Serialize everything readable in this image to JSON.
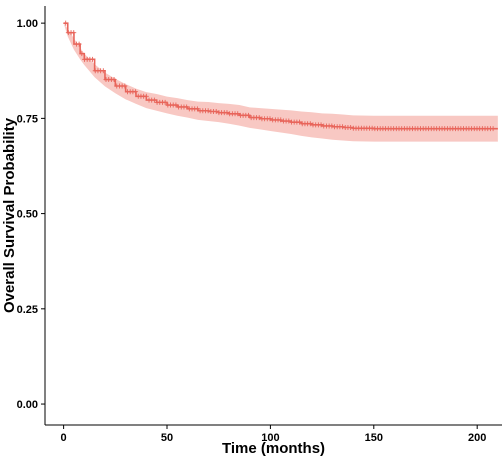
{
  "chart_data": {
    "type": "line",
    "title": "",
    "xlabel": "Time (months)",
    "ylabel": "Overall Survival Probability",
    "xlim": [
      -9,
      212
    ],
    "ylim": [
      -0.055,
      1.045
    ],
    "x_ticks": [
      0,
      50,
      100,
      150,
      200
    ],
    "x_tick_labels": [
      "0",
      "50",
      "100",
      "150",
      "200"
    ],
    "y_ticks": [
      0.0,
      0.25,
      0.5,
      0.75,
      1.0
    ],
    "y_tick_labels": [
      "0.00",
      "0.25",
      "0.50",
      "0.75",
      "1.00"
    ],
    "grid": false,
    "legend": "none",
    "line_color": "#E8655B",
    "band_color": "#F8C8C3",
    "series": [
      {
        "x": [
          0,
          2,
          5,
          8,
          10,
          15,
          20,
          25,
          30,
          35,
          40,
          45,
          50,
          55,
          60,
          65,
          70,
          75,
          80,
          85,
          90,
          95,
          100,
          105,
          110,
          115,
          120,
          125,
          130,
          135,
          140,
          150,
          160,
          170,
          180,
          190,
          200,
          210
        ],
        "y": [
          1.0,
          0.975,
          0.945,
          0.92,
          0.905,
          0.875,
          0.852,
          0.835,
          0.82,
          0.808,
          0.798,
          0.792,
          0.785,
          0.78,
          0.775,
          0.77,
          0.768,
          0.765,
          0.762,
          0.758,
          0.752,
          0.749,
          0.746,
          0.743,
          0.74,
          0.736,
          0.733,
          0.73,
          0.728,
          0.726,
          0.724,
          0.723,
          0.723,
          0.723,
          0.723,
          0.723,
          0.723,
          0.723
        ],
        "lower": [
          1.0,
          0.965,
          0.93,
          0.905,
          0.89,
          0.858,
          0.834,
          0.816,
          0.8,
          0.788,
          0.777,
          0.77,
          0.763,
          0.757,
          0.752,
          0.746,
          0.743,
          0.74,
          0.736,
          0.731,
          0.725,
          0.721,
          0.717,
          0.713,
          0.709,
          0.704,
          0.7,
          0.697,
          0.694,
          0.692,
          0.69,
          0.689,
          0.689,
          0.689,
          0.689,
          0.689,
          0.689,
          0.689
        ],
        "upper": [
          1.0,
          0.985,
          0.96,
          0.935,
          0.92,
          0.892,
          0.87,
          0.854,
          0.84,
          0.828,
          0.819,
          0.814,
          0.807,
          0.803,
          0.798,
          0.794,
          0.793,
          0.79,
          0.788,
          0.785,
          0.779,
          0.777,
          0.775,
          0.773,
          0.771,
          0.768,
          0.766,
          0.763,
          0.762,
          0.76,
          0.758,
          0.757,
          0.757,
          0.757,
          0.757,
          0.757,
          0.757,
          0.757
        ]
      }
    ]
  }
}
